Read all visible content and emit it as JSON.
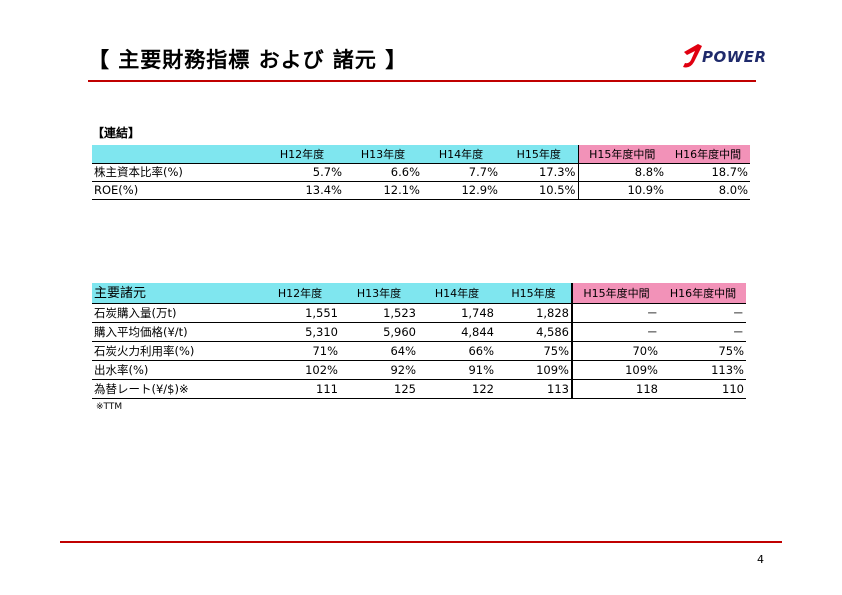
{
  "header": {
    "title": "【 主要財務指標 および 諸元 】",
    "logo_text": "POWER",
    "logo_icon": "j-power-logo",
    "accent_color": "#c00000"
  },
  "consolidated": {
    "label": "【連結】",
    "columns": [
      "H12年度",
      "H13年度",
      "H14年度",
      "H15年度",
      "H15年度中間",
      "H16年度中間"
    ],
    "rows": [
      {
        "label": "株主資本比率(%)",
        "values": [
          "5.7%",
          "6.6%",
          "7.7%",
          "17.3%",
          "8.8%",
          "18.7%"
        ]
      },
      {
        "label": "ROE(%)",
        "values": [
          "13.4%",
          "12.1%",
          "12.9%",
          "10.5%",
          "10.9%",
          "8.0%"
        ]
      }
    ]
  },
  "specs": {
    "label": "主要諸元",
    "columns": [
      "H12年度",
      "H13年度",
      "H14年度",
      "H15年度",
      "H15年度中間",
      "H16年度中間"
    ],
    "rows": [
      {
        "label": "石炭購入量(万t)",
        "values": [
          "1,551",
          "1,523",
          "1,748",
          "1,828",
          "－",
          "－"
        ]
      },
      {
        "label": "購入平均価格(¥/t)",
        "values": [
          "5,310",
          "5,960",
          "4,844",
          "4,586",
          "－",
          "－"
        ]
      },
      {
        "label": "石炭火力利用率(%)",
        "values": [
          "71%",
          "64%",
          "66%",
          "75%",
          "70%",
          "75%"
        ]
      },
      {
        "label": "出水率(%)",
        "values": [
          "102%",
          "92%",
          "91%",
          "109%",
          "109%",
          "113%"
        ]
      },
      {
        "label": "為替レート(¥/$)※",
        "values": [
          "111",
          "125",
          "122",
          "113",
          "118",
          "110"
        ]
      }
    ],
    "note": "※TTM"
  },
  "footer": {
    "page_number": "4"
  },
  "colors": {
    "header_bg": "#7fe6ef",
    "interim_bg": "#f292b8"
  }
}
